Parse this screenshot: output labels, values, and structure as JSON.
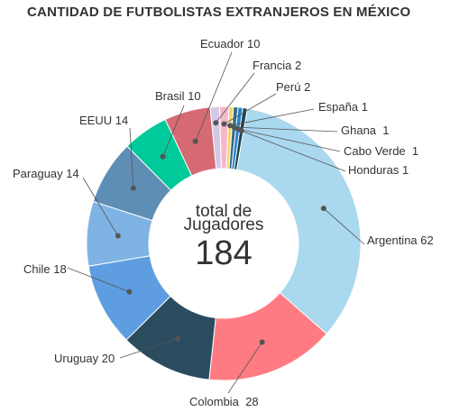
{
  "chart_data": {
    "type": "pie",
    "title": "CANTIDAD DE FUTBOLISTAS EXTRANJEROS EN MÉXICO",
    "center_label_1": "total de",
    "center_label_2": "Jugadores",
    "total": "184",
    "slices": [
      {
        "label": "Argentina",
        "value": 62,
        "text": "Argentina 62",
        "color": "#a9d8ef"
      },
      {
        "label": "Colombia",
        "value": 28,
        "text": "Colombia  28",
        "color": "#ff7b83"
      },
      {
        "label": "Uruguay",
        "value": 20,
        "text": "Uruguay 20",
        "color": "#2a4c5e"
      },
      {
        "label": "Chile",
        "value": 18,
        "text": "Chile 18",
        "color": "#5d9de0"
      },
      {
        "label": "Paraguay",
        "value": 14,
        "text": "Paraguay 14",
        "color": "#7fb3e3"
      },
      {
        "label": "EEUU",
        "value": 14,
        "text": "EEUU 14",
        "color": "#5f8eb5"
      },
      {
        "label": "Brasil",
        "value": 10,
        "text": "Brasil 10",
        "color": "#00c99a"
      },
      {
        "label": "Ecuador",
        "value": 10,
        "text": "Ecuador 10",
        "color": "#d56a73"
      },
      {
        "label": "Francia",
        "value": 2,
        "text": "Francia 2",
        "color": "#d3c9e6"
      },
      {
        "label": "Perú",
        "value": 2,
        "text": "Perú 2",
        "color": "#f6b8c9"
      },
      {
        "label": "España",
        "value": 1,
        "text": "España 1",
        "color": "#f5d36b"
      },
      {
        "label": "Ghana",
        "value": 1,
        "text": "Ghana  1",
        "color": "#2f6d8c"
      },
      {
        "label": "Cabo Verde",
        "value": 1,
        "text": "Cabo Verde  1",
        "color": "#2283c8"
      },
      {
        "label": "Honduras",
        "value": 1,
        "text": "Honduras 1",
        "color": "#1d4558"
      }
    ]
  }
}
